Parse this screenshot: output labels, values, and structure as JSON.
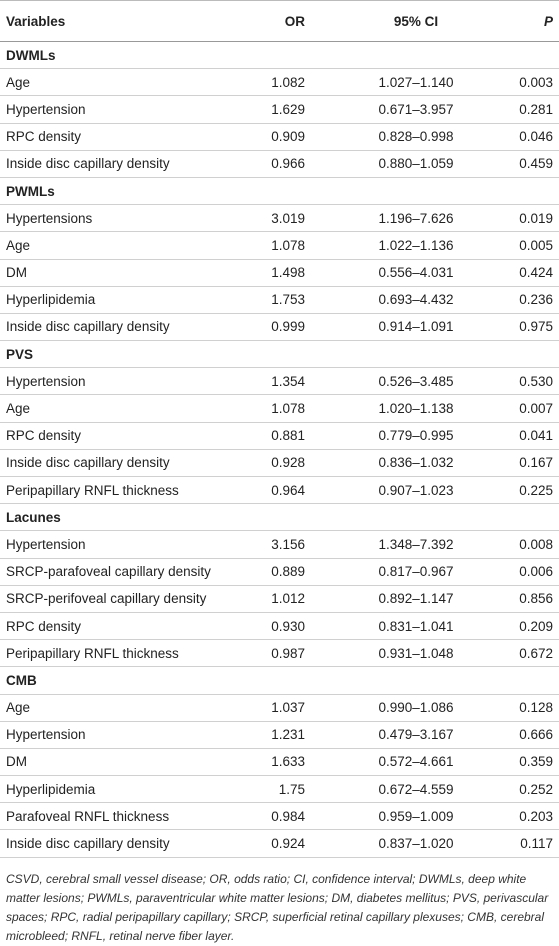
{
  "header": {
    "variables": "Variables",
    "or": "OR",
    "ci": "95% CI",
    "p": "P"
  },
  "sections": [
    {
      "title": "DWMLs",
      "rows": [
        [
          "Age",
          "1.082",
          "1.027–1.140",
          "0.003"
        ],
        [
          "Hypertension",
          "1.629",
          "0.671–3.957",
          "0.281"
        ],
        [
          "RPC density",
          "0.909",
          "0.828–0.998",
          "0.046"
        ],
        [
          "Inside disc capillary density",
          "0.966",
          "0.880–1.059",
          "0.459"
        ]
      ]
    },
    {
      "title": "PWMLs",
      "rows": [
        [
          "Hypertensions",
          "3.019",
          "1.196–7.626",
          "0.019"
        ],
        [
          "Age",
          "1.078",
          "1.022–1.136",
          "0.005"
        ],
        [
          "DM",
          "1.498",
          "0.556–4.031",
          "0.424"
        ],
        [
          "Hyperlipidemia",
          "1.753",
          "0.693–4.432",
          "0.236"
        ],
        [
          "Inside disc capillary density",
          "0.999",
          "0.914–1.091",
          "0.975"
        ]
      ]
    },
    {
      "title": "PVS",
      "rows": [
        [
          "Hypertension",
          "1.354",
          "0.526–3.485",
          "0.530"
        ],
        [
          "Age",
          "1.078",
          "1.020–1.138",
          "0.007"
        ],
        [
          "RPC density",
          "0.881",
          "0.779–0.995",
          "0.041"
        ],
        [
          "Inside disc capillary density",
          "0.928",
          "0.836–1.032",
          "0.167"
        ],
        [
          "Peripapillary RNFL thickness",
          "0.964",
          "0.907–1.023",
          "0.225"
        ]
      ]
    },
    {
      "title": "Lacunes",
      "rows": [
        [
          "Hypertension",
          "3.156",
          "1.348–7.392",
          "0.008"
        ],
        [
          "SRCP-parafoveal capillary density",
          "0.889",
          "0.817–0.967",
          "0.006"
        ],
        [
          "SRCP-perifoveal capillary density",
          "1.012",
          "0.892–1.147",
          "0.856"
        ],
        [
          "RPC density",
          "0.930",
          "0.831–1.041",
          "0.209"
        ],
        [
          "Peripapillary RNFL thickness",
          "0.987",
          "0.931–1.048",
          "0.672"
        ]
      ]
    },
    {
      "title": "CMB",
      "rows": [
        [
          "Age",
          "1.037",
          "0.990–1.086",
          "0.128"
        ],
        [
          "Hypertension",
          "1.231",
          "0.479–3.167",
          "0.666"
        ],
        [
          "DM",
          "1.633",
          "0.572–4.661",
          "0.359"
        ],
        [
          "Hyperlipidemia",
          "1.75",
          "0.672–4.559",
          "0.252"
        ],
        [
          "Parafoveal RNFL thickness",
          "0.984",
          "0.959–1.009",
          "0.203"
        ],
        [
          "Inside disc capillary density",
          "0.924",
          "0.837–1.020",
          "0.117"
        ]
      ]
    }
  ],
  "footnote": "CSVD, cerebral small vessel disease; OR, odds ratio; CI, confidence interval; DWMLs, deep white matter lesions; PWMLs, paraventricular white matter lesions; DM, diabetes mellitus; PVS, perivascular spaces; RPC, radial peripapillary capillary; SRCP, superficial retinal capillary plexuses; CMB, cerebral microbleed; RNFL, retinal nerve fiber layer."
}
